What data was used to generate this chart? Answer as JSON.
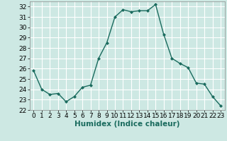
{
  "x": [
    0,
    1,
    2,
    3,
    4,
    5,
    6,
    7,
    8,
    9,
    10,
    11,
    12,
    13,
    14,
    15,
    16,
    17,
    18,
    19,
    20,
    21,
    22,
    23
  ],
  "y": [
    25.8,
    24.0,
    23.5,
    23.6,
    22.8,
    23.3,
    24.2,
    24.4,
    27.0,
    28.5,
    31.0,
    31.7,
    31.5,
    31.6,
    31.6,
    32.2,
    29.3,
    27.0,
    26.5,
    26.1,
    24.6,
    24.5,
    23.3,
    22.4
  ],
  "line_color": "#1a6b5e",
  "marker": "D",
  "marker_size": 2.0,
  "line_width": 1.0,
  "background_color": "#cde8e3",
  "grid_color": "#ffffff",
  "xlabel": "Humidex (Indice chaleur)",
  "xlabel_fontsize": 7.5,
  "tick_fontsize": 6.5,
  "ylim": [
    22,
    32.5
  ],
  "yticks": [
    22,
    23,
    24,
    25,
    26,
    27,
    28,
    29,
    30,
    31,
    32
  ],
  "xlim": [
    -0.5,
    23.5
  ],
  "xticks": [
    0,
    1,
    2,
    3,
    4,
    5,
    6,
    7,
    8,
    9,
    10,
    11,
    12,
    13,
    14,
    15,
    16,
    17,
    18,
    19,
    20,
    21,
    22,
    23
  ]
}
